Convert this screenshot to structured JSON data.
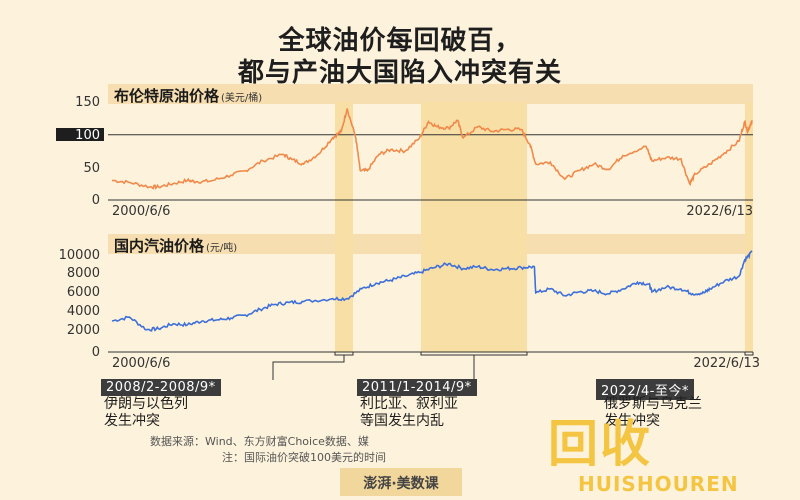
{
  "title_line1": "全球油价每回破百，",
  "title_line2": "都与产油大国陷入冲突有关",
  "chart_data": [
    {
      "type": "line",
      "title": "布伦特原油价格",
      "unit": "(美元/桶)",
      "ylim": [
        0,
        150
      ],
      "yticks": [
        "150",
        "100",
        "50",
        "0"
      ],
      "reference_line": 100,
      "x_start_label": "2000/6/6",
      "x_end_label": "2022/6/13",
      "grid": false,
      "series": [
        {
          "color": "#f08a4b",
          "x": [
            2000.4,
            2001.0,
            2001.7,
            2002.0,
            2002.5,
            2003.0,
            2003.3,
            2003.8,
            2004.5,
            2005.0,
            2005.6,
            2006.3,
            2006.6,
            2007.0,
            2007.5,
            2008.0,
            2008.3,
            2008.5,
            2008.8,
            2008.95,
            2009.2,
            2009.6,
            2010.0,
            2010.5,
            2011.0,
            2011.3,
            2011.6,
            2012.0,
            2012.3,
            2012.5,
            2013.0,
            2013.5,
            2014.0,
            2014.5,
            2014.8,
            2015.0,
            2015.5,
            2016.0,
            2016.5,
            2017.0,
            2017.5,
            2018.0,
            2018.8,
            2019.0,
            2019.5,
            2020.0,
            2020.3,
            2020.5,
            2021.0,
            2021.5,
            2022.0,
            2022.2,
            2022.3,
            2022.45
          ],
          "values": [
            30,
            27,
            20,
            20,
            25,
            30,
            28,
            29,
            38,
            45,
            60,
            70,
            62,
            55,
            70,
            95,
            105,
            140,
            95,
            45,
            45,
            70,
            77,
            75,
            95,
            120,
            112,
            110,
            122,
            95,
            112,
            105,
            108,
            108,
            85,
            55,
            58,
            32,
            45,
            55,
            47,
            68,
            82,
            60,
            65,
            63,
            25,
            40,
            55,
            72,
            90,
            120,
            105,
            122
          ]
        }
      ]
    },
    {
      "type": "line",
      "title": "国内汽油价格",
      "unit": "(元/吨)",
      "ylim": [
        0,
        10000
      ],
      "yticks": [
        "10000",
        "8000",
        "6000",
        "4000",
        "2000",
        "0"
      ],
      "x_start_label": "2000/6/6",
      "x_end_label": "2022/6/13",
      "grid": false,
      "series": [
        {
          "color": "#3f6fd8",
          "x": [
            2000.4,
            2001.0,
            2001.6,
            2002.0,
            2002.5,
            2003.0,
            2003.5,
            2004.0,
            2004.5,
            2005.0,
            2005.5,
            2006.0,
            2006.5,
            2007.0,
            2008.0,
            2008.5,
            2009.0,
            2009.5,
            2010.0,
            2010.5,
            2011.0,
            2011.5,
            2012.0,
            2012.5,
            2013.0,
            2013.5,
            2014.0,
            2014.5,
            2014.95,
            2015.0,
            2015.5,
            2016.0,
            2016.5,
            2017.0,
            2017.5,
            2018.0,
            2018.5,
            2018.9,
            2019.0,
            2019.5,
            2020.0,
            2020.4,
            2020.8,
            2021.0,
            2021.5,
            2022.0,
            2022.2,
            2022.45
          ],
          "values": [
            3200,
            3600,
            2300,
            2400,
            2900,
            2800,
            3200,
            3300,
            3500,
            3800,
            4400,
            4900,
            5100,
            5200,
            5500,
            5500,
            6500,
            7100,
            7400,
            7800,
            8200,
            8700,
            9100,
            8600,
            8800,
            8500,
            8600,
            8700,
            8800,
            6100,
            6500,
            5800,
            6200,
            6300,
            6000,
            6500,
            7200,
            7000,
            6200,
            6700,
            6500,
            6000,
            6100,
            6500,
            7300,
            7800,
            9500,
            10300
          ]
        }
      ]
    }
  ],
  "periods": [
    {
      "label": "2008/2-2008/9*",
      "text1": "伊朗与以色列",
      "text2": "发生冲突"
    },
    {
      "label": "2011/1-2014/9*",
      "text1": "利比亚、叙利亚",
      "text2": "等国发生内乱"
    },
    {
      "label": "2022/4-至今*",
      "text1": "俄罗斯与乌克兰",
      "text2": "发生冲突"
    }
  ],
  "footnote1": "数据来源：Wind、东方财富Choice数据、媒",
  "footnote2": "注：国际油价突破100美元的时间",
  "brand": "澎湃·美数课",
  "watermark_cn": "回收",
  "watermark_en": "HUISHOUREN"
}
